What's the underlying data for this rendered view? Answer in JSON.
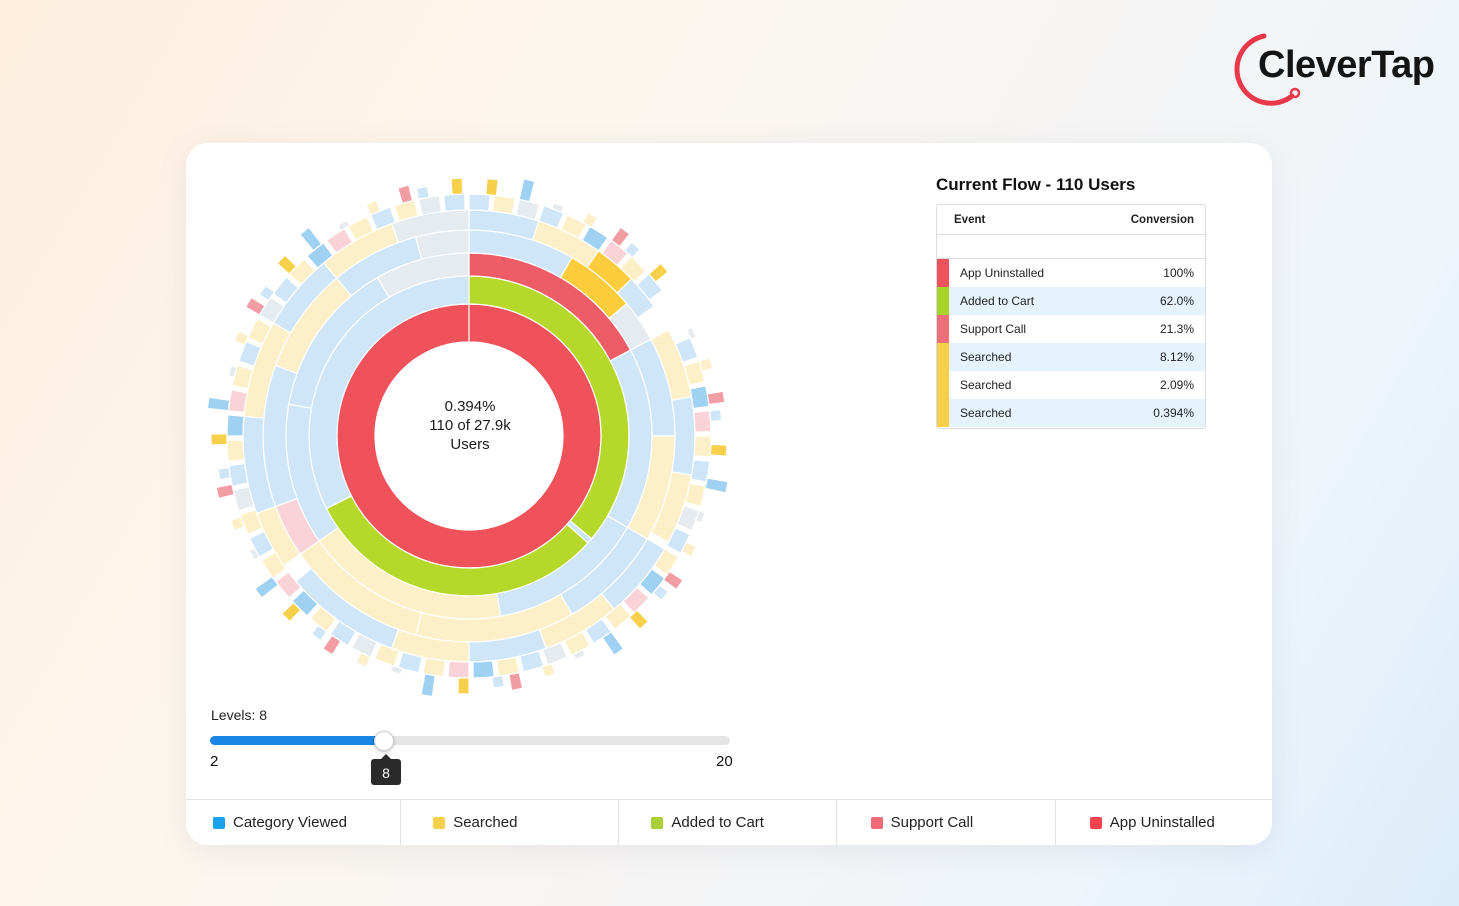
{
  "brand": {
    "logo_text": "CleverTap",
    "logo_color": "#e8394a"
  },
  "chart_center": {
    "percent": "0.394%",
    "count": "110 of 27.9k",
    "unit": "Users"
  },
  "flow": {
    "title": "Current Flow - 110 Users",
    "col_event": "Event",
    "col_conversion": "Conversion",
    "rows": [
      {
        "event": "App Uninstalled",
        "conversion": "100%",
        "color": "#f0535c"
      },
      {
        "event": "Added to Cart",
        "conversion": "62.0%",
        "color": "#a8d42a"
      },
      {
        "event": "Support Call",
        "conversion": "21.3%",
        "color": "#ee6f78"
      },
      {
        "event": "Searched",
        "conversion": "8.12%",
        "color": "#f6d04a"
      },
      {
        "event": "Searched",
        "conversion": "2.09%",
        "color": "#f6d04a"
      },
      {
        "event": "Searched",
        "conversion": "0.394%",
        "color": "#f6d04a"
      }
    ]
  },
  "levels": {
    "label": "Levels: 8",
    "min": "2",
    "max": "20",
    "value": "8",
    "fraction": 0.333
  },
  "legend": [
    {
      "label": "Category Viewed",
      "color": "#1aa3ec"
    },
    {
      "label": "Searched",
      "color": "#f5d04a"
    },
    {
      "label": "Added to Cart",
      "color": "#a9cf3b"
    },
    {
      "label": "Support Call",
      "color": "#ee6b77"
    },
    {
      "label": "App Uninstalled",
      "color": "#f0424f"
    }
  ]
}
